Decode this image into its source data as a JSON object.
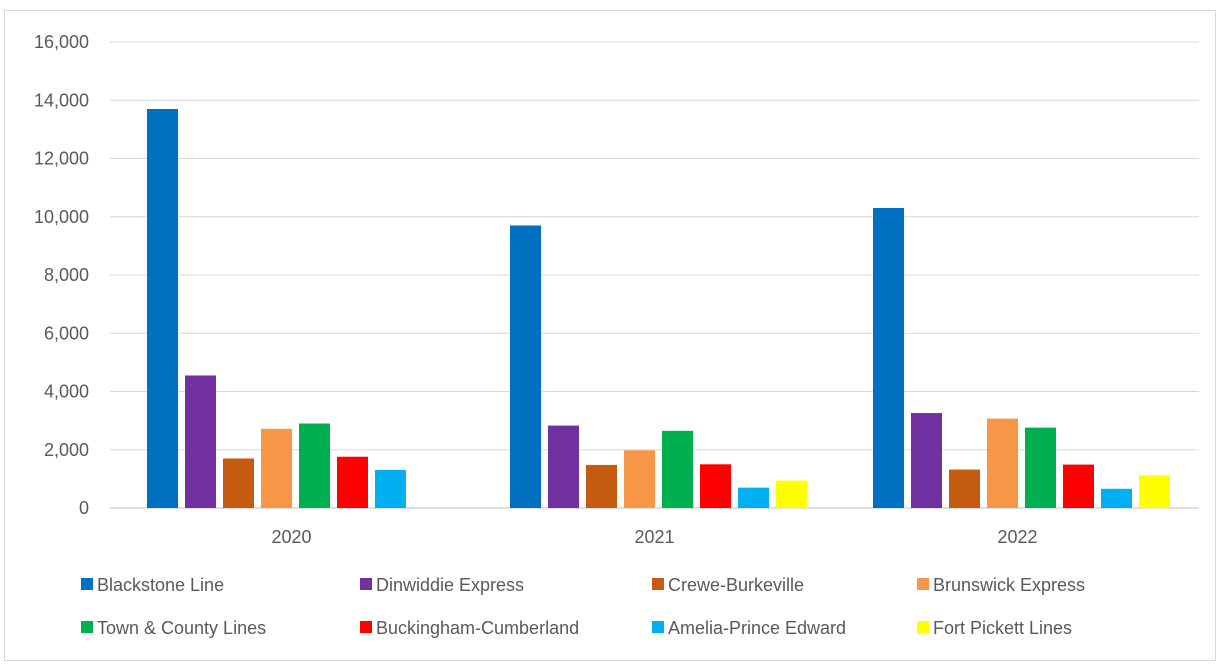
{
  "chart_data": {
    "type": "bar",
    "title": "",
    "xlabel": "",
    "ylabel": "",
    "ylim": [
      0,
      16000
    ],
    "y_ticks": [
      0,
      2000,
      4000,
      6000,
      8000,
      10000,
      12000,
      14000,
      16000
    ],
    "y_tick_labels": [
      "0",
      "2,000",
      "4,000",
      "6,000",
      "8,000",
      "10,000",
      "12,000",
      "14,000",
      "16,000"
    ],
    "grid": true,
    "legend_position": "bottom",
    "categories": [
      "2020",
      "2021",
      "2022"
    ],
    "series": [
      {
        "name": "Blackstone Line",
        "color": "#0070c0",
        "values": [
          13700,
          9700,
          10300
        ]
      },
      {
        "name": "Dinwiddie Express",
        "color": "#7030a0",
        "values": [
          4550,
          2830,
          3260
        ]
      },
      {
        "name": "Crewe-Burkeville",
        "color": "#c55a11",
        "values": [
          1700,
          1480,
          1320
        ]
      },
      {
        "name": "Brunswick Express",
        "color": "#f79646",
        "values": [
          2720,
          1980,
          3070
        ]
      },
      {
        "name": "Town & County Lines",
        "color": "#00b050",
        "values": [
          2900,
          2650,
          2760
        ]
      },
      {
        "name": "Buckingham-Cumberland",
        "color": "#ff0000",
        "values": [
          1760,
          1500,
          1490
        ]
      },
      {
        "name": "Amelia-Prince Edward",
        "color": "#00b0f0",
        "values": [
          1310,
          700,
          660
        ]
      },
      {
        "name": "Fort Pickett Lines",
        "color": "#ffff00",
        "values": [
          null,
          940,
          1120
        ]
      }
    ]
  }
}
